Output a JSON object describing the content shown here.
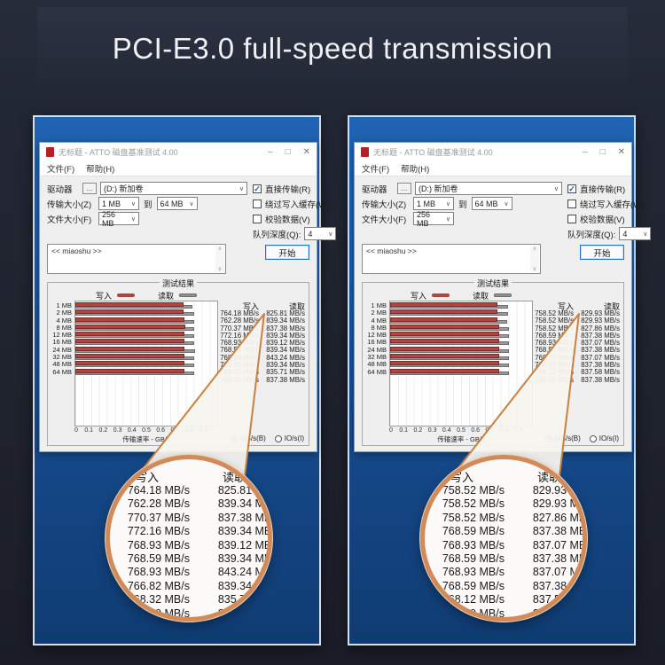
{
  "header": {
    "title": "PCI-E3.0 full-speed transmission"
  },
  "window": {
    "title": "无标题 - ATTO 磁盘基准测试 4.00",
    "menu": [
      "文件(F)",
      "帮助(H)"
    ],
    "controls": {
      "minimize": "–",
      "maximize": "□",
      "close": "✕"
    },
    "form": {
      "drive_label": "驱动器",
      "browse_button": "...",
      "drive_value": "(D:) 新加卷",
      "direct_io_label": "直接传输(R)",
      "direct_io_checked": true,
      "transfer_size_label": "传输大小(Z)",
      "transfer_from": "1 MB",
      "to_label": "到",
      "transfer_to": "64 MB",
      "bypass_label": "绕过写入缓存(W)",
      "bypass_checked": false,
      "file_size_label": "文件大小(F)",
      "file_size_value": "256 MB",
      "verify_label": "校验数据(V)",
      "verify_checked": false,
      "queue_depth_label": "队列深度(Q):",
      "queue_depth_value": "4",
      "description_text": "<< miaoshu >>",
      "start_button": "开始"
    },
    "results": {
      "group_label": "测试结果",
      "legend_write": "写入",
      "legend_read": "读取",
      "col_write": "写入",
      "col_read": "读取",
      "xlabel": "传输速率 - GB/s",
      "radio_mbs": "MB/s(B)",
      "radio_ios": "IO/s(I)",
      "radio_selected": "MB/s(B)",
      "unit": "MB/s"
    }
  },
  "colors": {
    "panel_blue": "#1b5aa6",
    "bar_write": "#b24543",
    "bar_read": "#9a9a9a",
    "magnifier_ring": "#d18a58",
    "accent_check": "#1758b7"
  },
  "chart_data": [
    {
      "type": "bar",
      "orientation": "horizontal",
      "categories": [
        "1 MB",
        "2 MB",
        "4 MB",
        "8 MB",
        "12 MB",
        "16 MB",
        "24 MB",
        "32 MB",
        "48 MB",
        "64 MB"
      ],
      "series": [
        {
          "name": "写入",
          "unit": "MB/s",
          "values": [
            764.18,
            762.28,
            770.37,
            772.16,
            768.93,
            768.59,
            768.93,
            766.82,
            768.32,
            768.59
          ]
        },
        {
          "name": "读取",
          "unit": "MB/s",
          "values": [
            825.81,
            839.34,
            837.38,
            839.34,
            839.12,
            839.34,
            843.24,
            839.34,
            835.71,
            837.38
          ]
        }
      ],
      "xlabel": "传输速率 - GB/s",
      "xlim": [
        0,
        1.0
      ],
      "xticks": [
        "0",
        "0.1",
        "0.2",
        "0.3",
        "0.4",
        "0.5",
        "0.6",
        "0.7",
        "0.8",
        "0.9"
      ],
      "grid": true,
      "legend_position": "top"
    },
    {
      "type": "bar",
      "orientation": "horizontal",
      "categories": [
        "1 MB",
        "2 MB",
        "4 MB",
        "8 MB",
        "12 MB",
        "16 MB",
        "24 MB",
        "32 MB",
        "48 MB",
        "64 MB"
      ],
      "series": [
        {
          "name": "写入",
          "unit": "MB/s",
          "values": [
            758.52,
            758.52,
            758.52,
            768.59,
            768.93,
            768.59,
            768.93,
            768.59,
            768.12,
            768.59
          ]
        },
        {
          "name": "读取",
          "unit": "MB/s",
          "values": [
            829.93,
            829.93,
            827.86,
            837.38,
            837.07,
            837.38,
            837.07,
            837.38,
            837.58,
            837.38
          ]
        }
      ],
      "xlabel": "传输速率 - GB/s",
      "xlim": [
        0,
        1.0
      ],
      "xticks": [
        "0",
        "0.1",
        "0.2",
        "0.3",
        "0.4",
        "0.5",
        "0.6",
        "0.7",
        "0.8",
        "0.9"
      ],
      "grid": true,
      "legend_position": "top"
    }
  ]
}
